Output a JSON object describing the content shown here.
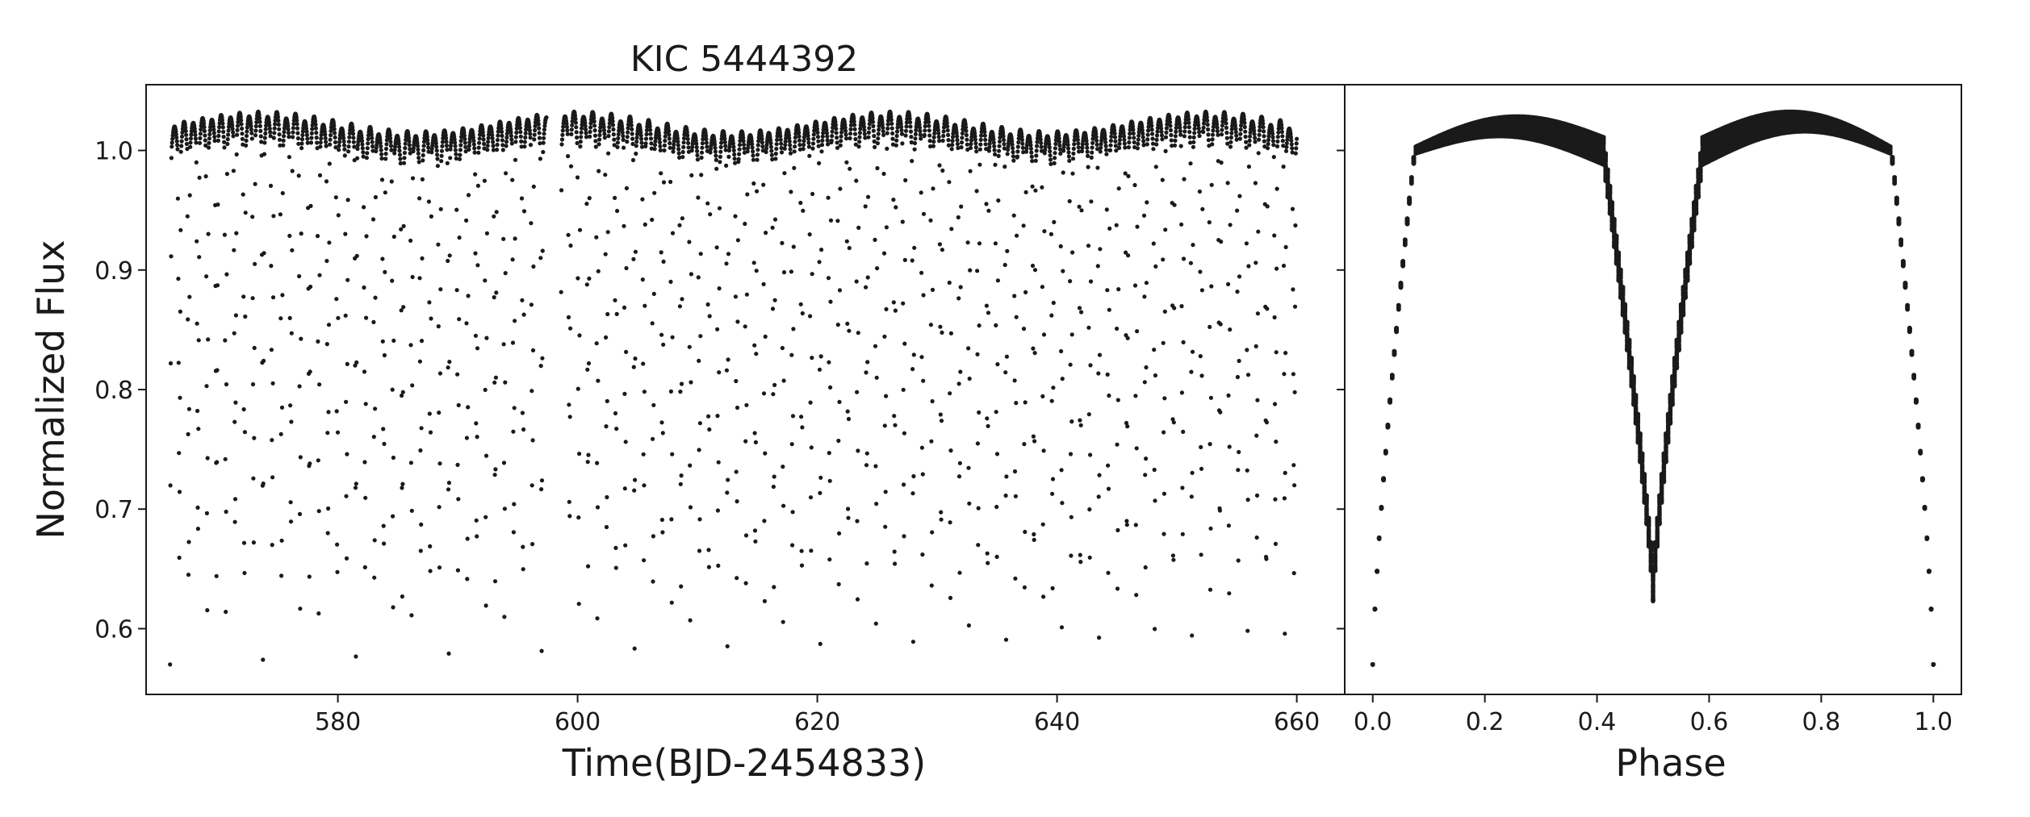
{
  "chart_data": [
    {
      "type": "scatter",
      "panel": "light-curve",
      "title": "KIC 5444392",
      "xlabel": "Time(BJD-2454833)",
      "ylabel": "Normalized Flux",
      "xlim": [
        564,
        664
      ],
      "ylim": [
        0.545,
        1.055
      ],
      "xticks": [
        "580",
        "600",
        "620",
        "640",
        "660"
      ],
      "xtick_values": [
        580,
        600,
        620,
        640,
        660
      ],
      "yticks": [
        "0.6",
        "0.7",
        "0.8",
        "0.9",
        "1.0"
      ],
      "ytick_values": [
        0.6,
        0.7,
        0.8,
        0.9,
        1.0
      ],
      "grid": false,
      "series": [
        {
          "color": "#1a1a1a",
          "time_range": [
            566,
            660
          ],
          "gap": [
            597.4,
            598.6
          ],
          "period_days": 1.55,
          "secondary_min_flux": 0.64,
          "primary_min_flux": 0.57,
          "max_flux": 1.025
        }
      ]
    },
    {
      "type": "scatter",
      "panel": "phase-folded",
      "xlabel": "Phase",
      "ylabel": "",
      "xlim": [
        -0.05,
        1.05
      ],
      "ylim": [
        0.545,
        1.055
      ],
      "xticks": [
        "0.0",
        "0.2",
        "0.4",
        "0.6",
        "0.8",
        "1.0"
      ],
      "xtick_values": [
        0.0,
        0.2,
        0.4,
        0.6,
        0.8,
        1.0
      ],
      "yticks": [],
      "grid": false,
      "series": [
        {
          "color": "#1a1a1a",
          "phase_range": [
            0,
            1
          ],
          "primary_min_flux": 0.57,
          "secondary_min_flux": 0.635,
          "max_flux": 1.028
        }
      ]
    }
  ]
}
